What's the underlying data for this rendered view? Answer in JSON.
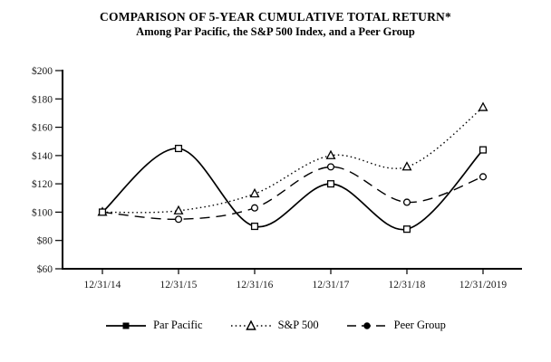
{
  "chart": {
    "title": "COMPARISON OF 5-YEAR CUMULATIVE TOTAL RETURN*",
    "subtitle": "Among Par Pacific, the S&P 500 Index, and a Peer Group"
  },
  "chart_data": {
    "type": "line",
    "title": "COMPARISON OF 5-YEAR CUMULATIVE TOTAL RETURN*",
    "subtitle": "Among Par Pacific, the S&P 500 Index, and a Peer Group",
    "categories": [
      "12/31/14",
      "12/31/15",
      "12/31/16",
      "12/31/17",
      "12/31/18",
      "12/31/2019"
    ],
    "series": [
      {
        "name": "Par Pacific",
        "line_style": "solid",
        "marker": "square",
        "values": [
          100,
          145,
          90,
          120,
          88,
          144
        ]
      },
      {
        "name": "S&P 500",
        "line_style": "dotted",
        "marker": "triangle",
        "values": [
          100,
          101,
          113,
          140,
          132,
          174
        ]
      },
      {
        "name": "Peer Group",
        "line_style": "dashed",
        "marker": "circle",
        "values": [
          100,
          95,
          103,
          132,
          107,
          125
        ]
      }
    ],
    "ylim": [
      60,
      200
    ],
    "ytick_step": 20,
    "ytick_labels": [
      "$200",
      "$180",
      "$160",
      "$140",
      "$120",
      "$100",
      "$80",
      "$60"
    ],
    "xlabel": "",
    "ylabel": "",
    "grid": false,
    "legend_position": "bottom",
    "line_color": "#000000",
    "smooth_lines": true
  }
}
